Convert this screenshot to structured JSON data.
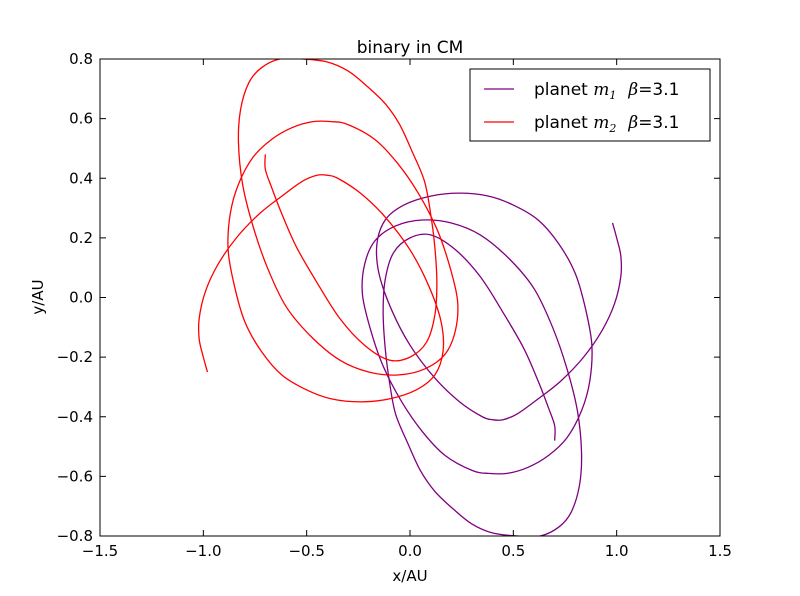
{
  "chart_data": {
    "type": "line",
    "title": "binary in CM",
    "xlabel": "x/AU",
    "ylabel": "y/AU",
    "xlim": [
      -1.5,
      1.5
    ],
    "ylim": [
      -0.8,
      0.8
    ],
    "xticks": [
      -1.5,
      -1.0,
      -0.5,
      0.0,
      0.5,
      1.0,
      1.5
    ],
    "yticks": [
      -0.8,
      -0.6,
      -0.4,
      -0.2,
      0.0,
      0.2,
      0.4,
      0.6,
      0.8
    ],
    "xtick_labels": [
      "−1.5",
      "−1.0",
      "−0.5",
      "0.0",
      "0.5",
      "1.0",
      "1.5"
    ],
    "ytick_labels": [
      "−0.8",
      "−0.6",
      "−0.4",
      "−0.2",
      "0.0",
      "0.2",
      "0.4",
      "0.6",
      "0.8"
    ],
    "grid": false,
    "legend_position": "top-right",
    "series": [
      {
        "name": "planet m1  β=3.1",
        "legend_prefix": "planet ",
        "legend_symbol": "m",
        "legend_subscript": "1",
        "legend_suffix": "=3.1",
        "legend_beta": "β",
        "color": "#800080",
        "x": [
          0.98,
          1.0,
          1.02,
          1.02,
          0.99,
          0.93,
          0.84,
          0.73,
          0.62,
          0.52,
          0.45,
          0.4,
          0.35,
          0.24,
          0.12,
          0.0,
          -0.09,
          -0.15,
          -0.16,
          -0.12,
          -0.03,
          0.1,
          0.24,
          0.38,
          0.5,
          0.62,
          0.72,
          0.8,
          0.85,
          0.88,
          0.87,
          0.83,
          0.76,
          0.67,
          0.57,
          0.47,
          0.38,
          0.3,
          0.17,
          0.06,
          -0.04,
          -0.13,
          -0.19,
          -0.23,
          -0.22,
          -0.17,
          -0.07,
          0.06,
          0.2,
          0.34,
          0.48,
          0.6,
          0.69,
          0.76,
          0.81,
          0.83,
          0.82,
          0.78,
          0.72,
          0.63,
          0.52,
          0.4,
          0.3,
          0.21,
          0.12,
          0.05,
          -0.01,
          -0.07,
          -0.1,
          -0.12,
          -0.13,
          -0.12,
          -0.08,
          0.0,
          0.1,
          0.22,
          0.34,
          0.45,
          0.55,
          0.62,
          0.67,
          0.7,
          0.7
        ],
        "y": [
          0.25,
          0.2,
          0.14,
          0.07,
          -0.02,
          -0.11,
          -0.2,
          -0.28,
          -0.34,
          -0.39,
          -0.41,
          -0.41,
          -0.4,
          -0.35,
          -0.27,
          -0.16,
          -0.04,
          0.08,
          0.18,
          0.26,
          0.31,
          0.34,
          0.35,
          0.34,
          0.31,
          0.26,
          0.18,
          0.08,
          -0.04,
          -0.16,
          -0.28,
          -0.38,
          -0.47,
          -0.53,
          -0.57,
          -0.59,
          -0.59,
          -0.58,
          -0.53,
          -0.45,
          -0.35,
          -0.23,
          -0.11,
          0.01,
          0.11,
          0.19,
          0.24,
          0.26,
          0.25,
          0.21,
          0.13,
          0.03,
          -0.1,
          -0.24,
          -0.38,
          -0.52,
          -0.63,
          -0.72,
          -0.77,
          -0.8,
          -0.8,
          -0.79,
          -0.76,
          -0.71,
          -0.65,
          -0.58,
          -0.49,
          -0.39,
          -0.28,
          -0.17,
          -0.05,
          0.06,
          0.15,
          0.2,
          0.21,
          0.16,
          0.07,
          -0.05,
          -0.17,
          -0.28,
          -0.37,
          -0.43,
          -0.48
        ]
      },
      {
        "name": "planet m2  β=3.1",
        "legend_prefix": "planet ",
        "legend_symbol": "m",
        "legend_subscript": "2",
        "legend_suffix": "=3.1",
        "legend_beta": "β",
        "color": "#ff0000",
        "x": [
          -0.98,
          -1.0,
          -1.02,
          -1.02,
          -0.99,
          -0.93,
          -0.84,
          -0.73,
          -0.62,
          -0.52,
          -0.45,
          -0.4,
          -0.35,
          -0.24,
          -0.12,
          0.0,
          0.09,
          0.15,
          0.16,
          0.12,
          0.03,
          -0.1,
          -0.24,
          -0.38,
          -0.5,
          -0.62,
          -0.72,
          -0.8,
          -0.85,
          -0.88,
          -0.87,
          -0.83,
          -0.76,
          -0.67,
          -0.57,
          -0.47,
          -0.38,
          -0.3,
          -0.17,
          -0.06,
          0.04,
          0.13,
          0.19,
          0.23,
          0.22,
          0.17,
          0.07,
          -0.06,
          -0.2,
          -0.34,
          -0.48,
          -0.6,
          -0.69,
          -0.76,
          -0.81,
          -0.83,
          -0.82,
          -0.78,
          -0.72,
          -0.63,
          -0.52,
          -0.4,
          -0.3,
          -0.21,
          -0.12,
          -0.05,
          0.01,
          0.07,
          0.1,
          0.12,
          0.13,
          0.12,
          0.08,
          0.0,
          -0.1,
          -0.22,
          -0.34,
          -0.45,
          -0.55,
          -0.62,
          -0.67,
          -0.7,
          -0.7
        ],
        "y": [
          -0.25,
          -0.2,
          -0.14,
          -0.07,
          0.02,
          0.11,
          0.2,
          0.28,
          0.34,
          0.39,
          0.41,
          0.41,
          0.4,
          0.35,
          0.27,
          0.16,
          0.04,
          -0.08,
          -0.18,
          -0.26,
          -0.31,
          -0.34,
          -0.35,
          -0.34,
          -0.31,
          -0.26,
          -0.18,
          -0.08,
          0.04,
          0.16,
          0.28,
          0.38,
          0.47,
          0.53,
          0.57,
          0.59,
          0.59,
          0.58,
          0.53,
          0.45,
          0.35,
          0.23,
          0.11,
          -0.01,
          -0.11,
          -0.19,
          -0.24,
          -0.26,
          -0.25,
          -0.21,
          -0.13,
          -0.03,
          0.1,
          0.24,
          0.38,
          0.52,
          0.63,
          0.72,
          0.77,
          0.8,
          0.8,
          0.79,
          0.76,
          0.71,
          0.65,
          0.58,
          0.49,
          0.39,
          0.28,
          0.17,
          0.05,
          -0.06,
          -0.15,
          -0.2,
          -0.21,
          -0.16,
          -0.07,
          0.05,
          0.17,
          0.28,
          0.37,
          0.43,
          0.48
        ]
      }
    ]
  }
}
